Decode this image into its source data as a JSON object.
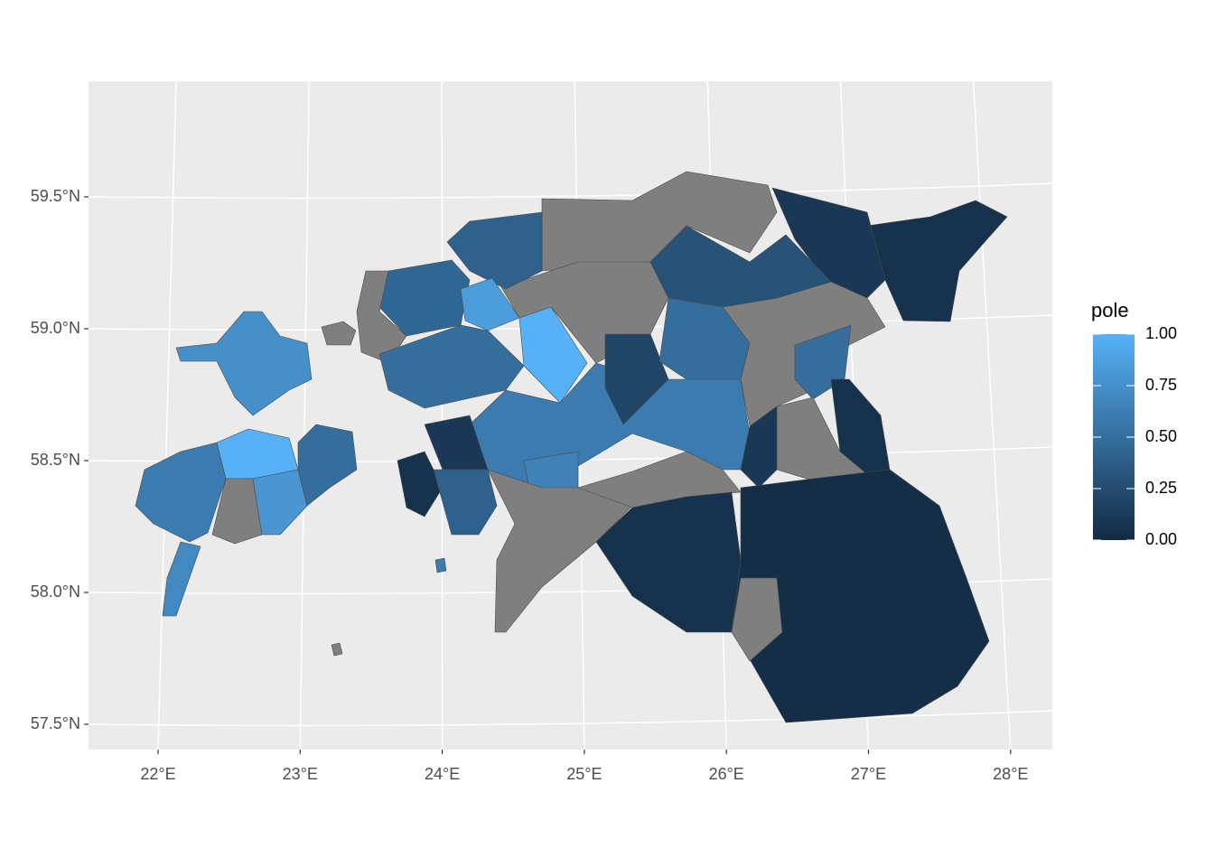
{
  "chart_data": {
    "type": "map",
    "xticks": [
      {
        "value": 22,
        "label": "22°E"
      },
      {
        "value": 23,
        "label": "23°E"
      },
      {
        "value": 24,
        "label": "24°E"
      },
      {
        "value": 25,
        "label": "25°E"
      },
      {
        "value": 26,
        "label": "26°E"
      },
      {
        "value": 27,
        "label": "27°E"
      },
      {
        "value": 28,
        "label": "28°E"
      }
    ],
    "yticks": [
      {
        "value": 57.5,
        "label": "57.5°N"
      },
      {
        "value": 58.0,
        "label": "58.0°N"
      },
      {
        "value": 58.5,
        "label": "58.5°N"
      },
      {
        "value": 59.0,
        "label": "59.0°N"
      },
      {
        "value": 59.5,
        "label": "59.5°N"
      }
    ],
    "xlim": [
      21.5,
      28.3
    ],
    "ylim": [
      57.4,
      59.93
    ],
    "grid": true,
    "legend": {
      "title": "pole",
      "limits": [
        0,
        1
      ],
      "ticks": [
        {
          "value": 0,
          "label": "0.00"
        },
        {
          "value": 0.25,
          "label": "0.25"
        },
        {
          "value": 0.5,
          "label": "0.50"
        },
        {
          "value": 0.75,
          "label": "0.75"
        },
        {
          "value": 1,
          "label": "1.00"
        }
      ],
      "colors": [
        "#132B43",
        "#56B1F7"
      ],
      "na_color": "#7F7F7F"
    },
    "values": [
      0.05,
      0.1,
      null,
      0.3,
      0.4,
      0.45,
      null,
      1.0,
      0.85,
      0.5,
      null,
      0.2,
      0.5,
      null,
      0.5,
      0.05,
      0.6,
      0.65,
      0.1,
      0.05,
      0.4,
      null,
      null,
      0.05,
      0.02,
      null,
      null,
      0.1,
      0.75,
      0.6,
      1.0,
      null,
      0.8,
      0.5,
      0.7,
      null,
      0.6,
      null
    ]
  }
}
